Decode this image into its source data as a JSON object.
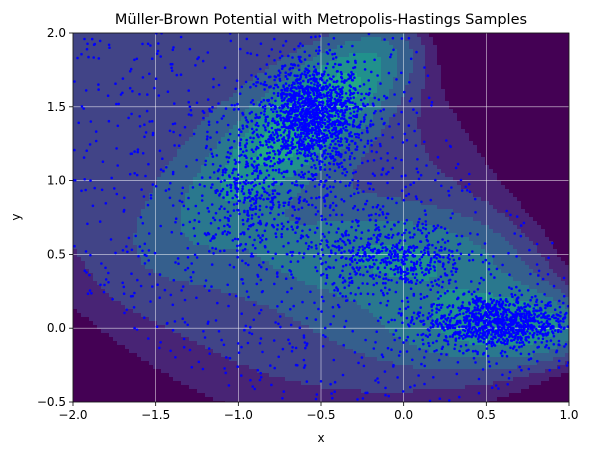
{
  "chart_data": {
    "type": "scatter",
    "title": "Müller-Brown Potential with Metropolis-Hastings Samples",
    "xlabel": "x",
    "ylabel": "y",
    "xlim": [
      -2.0,
      1.0
    ],
    "ylim": [
      -0.5,
      2.0
    ],
    "x_ticks": [
      "-2.0",
      "-1.5",
      "-1.0",
      "-0.5",
      "0.0",
      "0.5",
      "1.0"
    ],
    "y_ticks": [
      "-0.5",
      "0.0",
      "0.5",
      "1.0",
      "1.5",
      "2.0"
    ],
    "grid": true,
    "background": "filled contour plot of the Müller-Brown potential (viridis colormap)",
    "colormap": "viridis",
    "marker_color": "#0000ff",
    "series": [
      {
        "clusters": [
          {
            "center": [
              -0.56,
              1.44
            ],
            "spread": [
              0.16,
              0.18
            ],
            "count": 1400
          },
          {
            "center": [
              0.56,
              0.04
            ],
            "spread": [
              0.22,
              0.09
            ],
            "count": 1000
          },
          {
            "center": [
              -0.05,
              0.47
            ],
            "spread": [
              0.22,
              0.12
            ],
            "count": 450
          },
          {
            "center": [
              -0.95,
              0.95
            ],
            "spread": [
              0.14,
              0.22
            ],
            "count": 280
          },
          {
            "center": [
              -0.6,
              0.85
            ],
            "spread": [
              0.35,
              0.3
            ],
            "count": 300
          }
        ],
        "background_points": 1000
      }
    ]
  }
}
